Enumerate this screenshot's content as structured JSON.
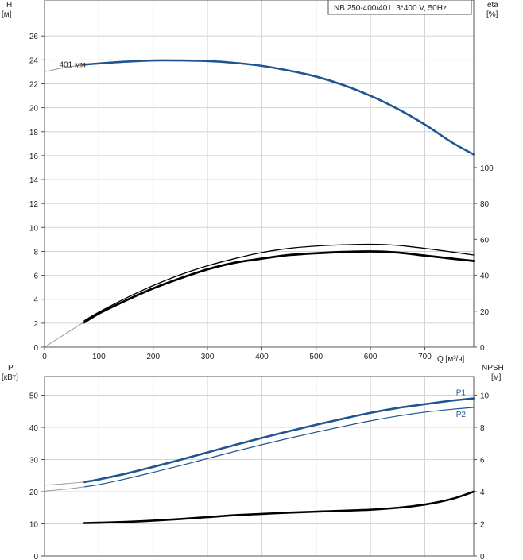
{
  "model_label": "NB 250-400/401, 3*400 V, 50Hz",
  "colors": {
    "blue": "#1f5591",
    "black": "#000000",
    "grid": "#d4d4d4",
    "thin_curve": "#9a9a9a"
  },
  "chart_data": [
    {
      "type": "line",
      "title": "",
      "xlabel": "Q [м³/ч]",
      "ylabel_left": "H\n[м]",
      "ylabel_right": "eta\n[%]",
      "xlim": [
        0,
        790
      ],
      "ylim_left": [
        0,
        29
      ],
      "ylim_right": [
        0,
        193.33
      ],
      "grid": true,
      "x_ticks": [
        "0",
        "100",
        "200",
        "300",
        "400",
        "500",
        "600",
        "700"
      ],
      "y_ticks_left": [
        "0",
        "2",
        "4",
        "6",
        "8",
        "10",
        "12",
        "14",
        "16",
        "18",
        "20",
        "22",
        "24",
        "26"
      ],
      "y_ticks_right": [
        "0",
        "20",
        "40",
        "60",
        "80",
        "100"
      ],
      "annotations": [
        {
          "text": "401 мм",
          "x": 30,
          "y": 23.6
        }
      ],
      "series": [
        {
          "axis": "left",
          "color": "blue",
          "width": 2.6,
          "x": [
            73,
            100,
            150,
            200,
            250,
            300,
            350,
            400,
            450,
            500,
            550,
            600,
            650,
            700,
            750,
            790
          ],
          "y": [
            23.6,
            23.7,
            23.85,
            23.95,
            23.95,
            23.9,
            23.75,
            23.5,
            23.1,
            22.6,
            21.9,
            21.0,
            19.9,
            18.6,
            17.1,
            16.1
          ]
        },
        {
          "axis": "left",
          "color": "thin_curve",
          "width": 1,
          "x": [
            0,
            25,
            50,
            73
          ],
          "y": [
            23.0,
            23.25,
            23.45,
            23.6
          ]
        },
        {
          "axis": "right",
          "color": "black",
          "width": 1.3,
          "x": [
            73,
            100,
            150,
            200,
            250,
            300,
            350,
            400,
            450,
            500,
            550,
            600,
            650,
            700,
            750,
            790
          ],
          "y": [
            14.7,
            19.5,
            27.3,
            34.3,
            40.3,
            45.3,
            49.3,
            52.7,
            55.0,
            56.3,
            57.0,
            57.3,
            56.7,
            55.0,
            53.0,
            51.3
          ]
        },
        {
          "axis": "right",
          "color": "black",
          "width": 2.8,
          "x": [
            73,
            100,
            150,
            200,
            250,
            300,
            350,
            400,
            450,
            500,
            550,
            600,
            650,
            700,
            750,
            790
          ],
          "y": [
            13.7,
            18.7,
            26.0,
            32.7,
            38.3,
            43.3,
            47.0,
            49.3,
            51.3,
            52.3,
            53.0,
            53.3,
            52.7,
            51.0,
            49.3,
            48.0
          ]
        },
        {
          "axis": "right",
          "color": "thin_curve",
          "width": 1,
          "x": [
            0,
            73
          ],
          "y": [
            0,
            14.0
          ]
        }
      ]
    },
    {
      "type": "line",
      "title": "",
      "ylabel_left": "P\n[кВт]",
      "ylabel_right": "NPSH\n[м]",
      "xlim": [
        0,
        790
      ],
      "ylim_left": [
        0,
        55.8
      ],
      "ylim_right": [
        0,
        11.16
      ],
      "grid": true,
      "y_ticks_left": [
        "0",
        "10",
        "20",
        "30",
        "40",
        "50"
      ],
      "y_ticks_right": [
        "0",
        "2",
        "4",
        "6",
        "8",
        "10"
      ],
      "series": [
        {
          "name": "P1",
          "axis": "left",
          "color": "blue",
          "width": 2.6,
          "x": [
            73,
            100,
            150,
            200,
            250,
            300,
            350,
            400,
            450,
            500,
            550,
            600,
            650,
            700,
            750,
            790
          ],
          "y": [
            23.0,
            23.8,
            25.6,
            27.7,
            29.9,
            32.2,
            34.5,
            36.7,
            38.8,
            40.8,
            42.7,
            44.5,
            46.0,
            47.2,
            48.3,
            49.0
          ]
        },
        {
          "name": "P2",
          "axis": "left",
          "color": "blue",
          "width": 1.2,
          "x": [
            73,
            100,
            150,
            200,
            250,
            300,
            350,
            400,
            450,
            500,
            550,
            600,
            650,
            700,
            750,
            790
          ],
          "y": [
            21.5,
            22.2,
            24.0,
            26.0,
            28.1,
            30.3,
            32.5,
            34.6,
            36.6,
            38.5,
            40.3,
            42.0,
            43.5,
            44.7,
            45.6,
            46.2
          ]
        },
        {
          "axis": "left",
          "color": "thin_curve",
          "width": 1,
          "x": [
            0,
            40,
            73
          ],
          "y": [
            22.0,
            22.5,
            23.0
          ]
        },
        {
          "axis": "left",
          "color": "thin_curve",
          "width": 1,
          "x": [
            0,
            40,
            73
          ],
          "y": [
            20.2,
            20.8,
            21.5
          ]
        },
        {
          "axis": "right",
          "color": "black",
          "width": 2.6,
          "x": [
            73,
            100,
            150,
            200,
            250,
            300,
            350,
            400,
            450,
            500,
            550,
            600,
            650,
            700,
            750,
            790
          ],
          "y": [
            2.05,
            2.07,
            2.12,
            2.2,
            2.3,
            2.42,
            2.54,
            2.62,
            2.7,
            2.76,
            2.82,
            2.88,
            3.0,
            3.2,
            3.55,
            4.0
          ]
        },
        {
          "axis": "right",
          "color": "thin_curve",
          "width": 1,
          "x": [
            0,
            73
          ],
          "y": [
            2.05,
            2.05
          ]
        }
      ]
    }
  ]
}
